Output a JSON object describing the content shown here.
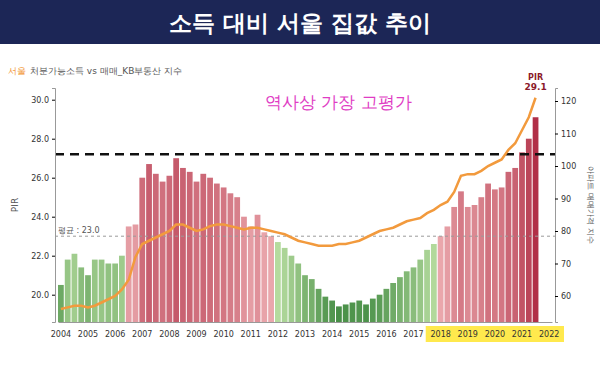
{
  "chart_data": {
    "type": "bar",
    "title": "소득 대비 서울 집값 추이",
    "subtitle": [
      "서울",
      "처분가능소득 vs 매매_KB부동산 지수"
    ],
    "y_label": "PIR",
    "y2_label": "아파트 매매가격 지수",
    "categories": [
      "2004",
      null,
      null,
      null,
      "2005",
      null,
      null,
      null,
      "2006",
      null,
      null,
      null,
      "2007",
      null,
      null,
      null,
      "2008",
      null,
      null,
      null,
      "2009",
      null,
      null,
      null,
      "2010",
      null,
      null,
      null,
      "2011",
      null,
      null,
      null,
      "2012",
      null,
      null,
      null,
      "2013",
      null,
      null,
      null,
      "2014",
      null,
      null,
      null,
      "2015",
      null,
      null,
      null,
      "2016",
      null,
      null,
      null,
      "2017",
      null,
      null,
      null,
      "2018",
      null,
      null,
      null,
      "2019",
      null,
      null,
      null,
      "2020",
      null,
      null,
      null,
      "2021",
      null,
      null,
      null,
      "2022"
    ],
    "series": [
      {
        "type": "bar",
        "values": [
          20.5,
          21.8,
          22.1,
          21.4,
          21.0,
          21.8,
          21.8,
          21.6,
          21.6,
          22.0,
          23.5,
          23.6,
          26.0,
          26.7,
          26.2,
          25.8,
          26.1,
          27.0,
          26.5,
          26.3,
          25.8,
          26.2,
          26.0,
          25.7,
          25.5,
          25.2,
          25.0,
          24.0,
          23.5,
          24.1,
          23.2,
          23.0,
          22.7,
          22.4,
          22.0,
          21.6,
          21.0,
          20.8,
          20.3,
          19.9,
          19.7,
          19.4,
          19.5,
          19.6,
          19.7,
          19.5,
          19.8,
          20.0,
          20.3,
          20.6,
          20.9,
          21.2,
          21.4,
          21.8,
          22.3,
          22.6,
          23.0,
          23.5,
          24.5,
          25.3,
          24.5,
          24.6,
          25.0,
          25.7,
          25.4,
          25.5,
          26.3,
          26.5,
          27.3,
          28.0,
          29.1,
          null,
          null
        ]
      },
      {
        "type": "line",
        "axis": "y2",
        "color": "#f29a3d",
        "values": [
          56,
          56.5,
          57,
          57,
          56.5,
          57,
          58,
          59,
          60,
          62,
          65,
          72,
          76,
          77,
          78,
          79,
          80,
          82,
          82,
          81,
          80,
          80.5,
          81.5,
          82,
          82,
          81.5,
          81,
          80.5,
          81,
          81,
          80.5,
          80,
          79.5,
          79,
          78,
          77,
          76.5,
          76,
          75.5,
          75.5,
          75.5,
          76,
          76,
          76.5,
          77,
          78,
          79,
          80,
          80.5,
          81,
          82,
          83,
          83.5,
          84,
          85.5,
          86.5,
          88,
          89,
          92,
          97,
          97.5,
          97.5,
          98.5,
          100,
          101,
          102,
          105,
          107,
          111,
          115,
          121,
          null,
          null
        ]
      }
    ],
    "ylim": [
      18.6,
      30.6
    ],
    "yticks": [
      {
        "value": 20,
        "label": "20.0"
      },
      {
        "value": 22,
        "label": "22.0"
      },
      {
        "value": 24,
        "label": "24.0"
      },
      {
        "value": 26,
        "label": "26.0"
      },
      {
        "value": 28,
        "label": "28.0"
      },
      {
        "value": 30,
        "label": "30.0"
      }
    ],
    "y2lim": [
      52,
      124
    ],
    "y2ticks": [
      60,
      70,
      80,
      90,
      100,
      110,
      120
    ],
    "grid": false,
    "reference_lines": [
      {
        "value": 23.0,
        "label": "평균 : 23.0",
        "line_style": "dashed",
        "color": "#9a9a9a"
      },
      {
        "value": 27.2,
        "line_style": "dashed",
        "color": "#111111"
      }
    ],
    "annotations": [
      {
        "text": "역사상 가장 고평가",
        "color": "#e03cc4"
      }
    ],
    "end_label": {
      "title": "PIR",
      "value": 29.1
    },
    "highlight": {
      "from": "2018",
      "to": "2022"
    }
  }
}
